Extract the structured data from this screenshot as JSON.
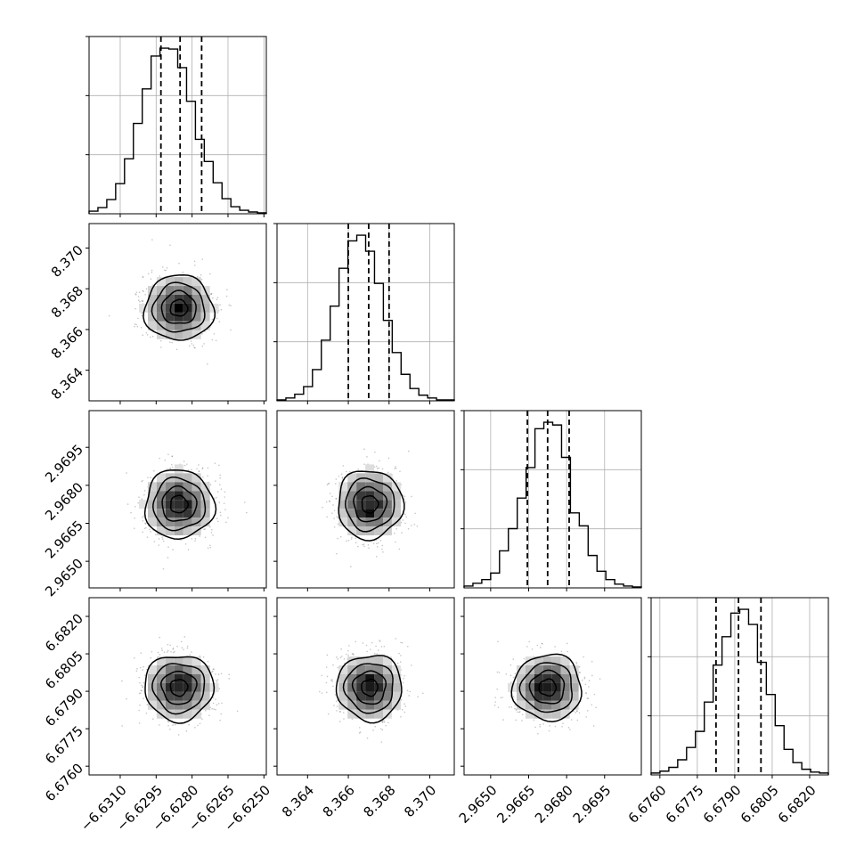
{
  "chart_data": {
    "type": "corner",
    "parameters": [
      "",
      "",
      "",
      ""
    ],
    "colors": {
      "ink": "#000000",
      "grid": "#b0b0b0",
      "scatter": "#7f7f7f"
    },
    "quantile_lines": "dashed at 16th, 50th and 84th percentiles",
    "grid": true,
    "ranges": [
      [
        -6.6323,
        -6.6249
      ],
      [
        8.3625,
        8.3712
      ],
      [
        2.96395,
        2.97095
      ],
      [
        6.67565,
        6.68275
      ]
    ],
    "ticks": [
      {
        "values": [
          -6.631,
          -6.6295,
          -6.628,
          -6.6265,
          -6.625
        ],
        "labels": [
          "−6.6310",
          "−6.6295",
          "−6.6280",
          "−6.6265",
          "−6.6250"
        ]
      },
      {
        "values": [
          8.364,
          8.366,
          8.368,
          8.37
        ],
        "labels": [
          "8.364",
          "8.366",
          "8.368",
          "8.370"
        ]
      },
      {
        "values": [
          2.965,
          2.9665,
          2.968,
          2.9695
        ],
        "labels": [
          "2.9650",
          "2.9665",
          "2.9680",
          "2.9695"
        ]
      },
      {
        "values": [
          6.676,
          6.6775,
          6.679,
          6.6805,
          6.682
        ],
        "labels": [
          "6.6760",
          "6.6775",
          "6.6790",
          "6.6805",
          "6.6820"
        ]
      }
    ],
    "means": [
      -6.62855,
      8.36705,
      2.96725,
      6.67915
    ],
    "stds": [
      0.00072,
      0.0008,
      0.00068,
      0.00066
    ],
    "quantiles": [
      [
        -6.6293,
        -6.6285,
        -6.6276
      ],
      [
        8.366,
        8.367,
        8.368
      ],
      [
        2.96645,
        2.96725,
        2.9681
      ],
      [
        6.67825,
        6.67915,
        6.68005
      ]
    ],
    "histograms": [
      {
        "bins": 20,
        "counts": [
          0.3,
          0.7,
          1.6,
          3.4,
          6.2,
          10.2,
          14.1,
          17.8,
          18.7,
          18.6,
          16.5,
          12.7,
          8.4,
          5.9,
          3.5,
          1.7,
          0.8,
          0.4,
          0.2,
          0.1
        ]
      },
      {
        "bins": 20,
        "counts": [
          0.1,
          0.3,
          0.7,
          1.5,
          3.3,
          6.4,
          10.0,
          14.0,
          16.9,
          17.5,
          15.8,
          12.4,
          8.5,
          5.1,
          2.8,
          1.3,
          0.6,
          0.3,
          0.1,
          0.1
        ]
      },
      {
        "bins": 20,
        "counts": [
          0.2,
          0.5,
          0.9,
          1.6,
          4.0,
          6.4,
          9.7,
          13.0,
          17.2,
          17.9,
          17.6,
          14.1,
          8.1,
          6.7,
          3.5,
          1.8,
          0.9,
          0.4,
          0.2,
          0.1
        ]
      },
      {
        "bins": 20,
        "counts": [
          0.2,
          0.4,
          0.8,
          1.6,
          2.9,
          4.6,
          7.7,
          11.6,
          14.6,
          17.1,
          17.5,
          15.9,
          11.9,
          8.5,
          5.2,
          2.7,
          1.3,
          0.6,
          0.3,
          0.2
        ]
      }
    ],
    "contour_levels_sigma": [
      0.5,
      1.0,
      1.5,
      2.0
    ],
    "panels": [
      {
        "row": 1,
        "col": 0,
        "x": 0,
        "y": 1
      },
      {
        "row": 2,
        "col": 0,
        "x": 0,
        "y": 2
      },
      {
        "row": 2,
        "col": 1,
        "x": 1,
        "y": 2
      },
      {
        "row": 3,
        "col": 0,
        "x": 0,
        "y": 3
      },
      {
        "row": 3,
        "col": 1,
        "x": 1,
        "y": 3
      },
      {
        "row": 3,
        "col": 2,
        "x": 2,
        "y": 3
      }
    ]
  }
}
